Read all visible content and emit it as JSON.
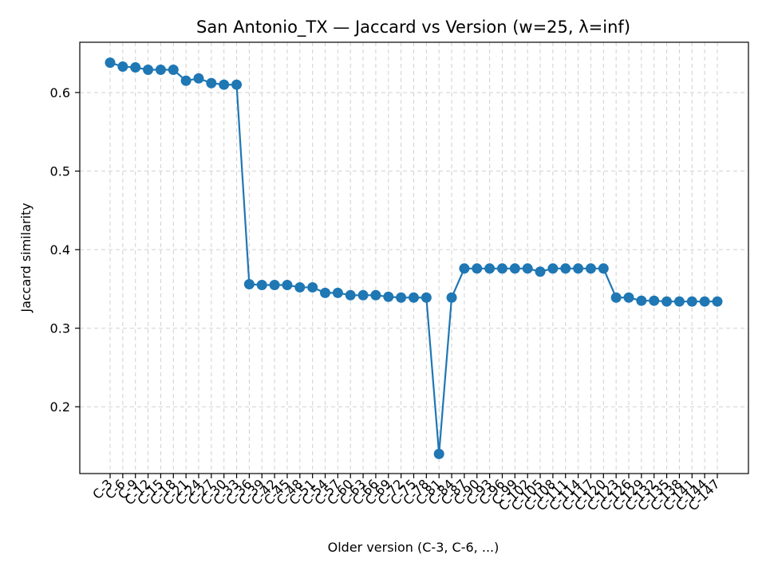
{
  "chart_data": {
    "type": "line",
    "title": "San Antonio_TX — Jaccard vs Version (w=25, λ=inf)",
    "xlabel": "Older version (C-3, C-6, ...)",
    "ylabel": "Jaccard similarity",
    "categories": [
      "C-3",
      "C-6",
      "C-9",
      "C-12",
      "C-15",
      "C-18",
      "C-21",
      "C-24",
      "C-27",
      "C-30",
      "C-33",
      "C-36",
      "C-39",
      "C-42",
      "C-45",
      "C-48",
      "C-51",
      "C-54",
      "C-57",
      "C-60",
      "C-63",
      "C-66",
      "C-69",
      "C-72",
      "C-75",
      "C-78",
      "C-81",
      "C-84",
      "C-87",
      "C-90",
      "C-93",
      "C-96",
      "C-99",
      "C-102",
      "C-105",
      "C-108",
      "C-111",
      "C-114",
      "C-117",
      "C-120",
      "C-123",
      "C-126",
      "C-129",
      "C-132",
      "C-135",
      "C-138",
      "C-141",
      "C-144",
      "C-147"
    ],
    "series": [
      {
        "values": [
          0.638,
          0.633,
          0.632,
          0.629,
          0.629,
          0.629,
          0.615,
          0.618,
          0.612,
          0.61,
          0.61,
          0.356,
          0.355,
          0.355,
          0.355,
          0.352,
          0.352,
          0.345,
          0.345,
          0.342,
          0.342,
          0.342,
          0.34,
          0.339,
          0.339,
          0.339,
          0.14,
          0.339,
          0.376,
          0.376,
          0.376,
          0.376,
          0.376,
          0.376,
          0.372,
          0.376,
          0.376,
          0.376,
          0.376,
          0.376,
          0.339,
          0.339,
          0.335,
          0.335,
          0.334,
          0.334,
          0.334,
          0.334,
          0.334
        ],
        "color": "#1f77b4"
      }
    ],
    "ylim": [
      0.115,
      0.664
    ],
    "yticks": [
      0.2,
      0.3,
      0.4,
      0.5,
      0.6
    ],
    "grid": true,
    "legend": "none"
  }
}
